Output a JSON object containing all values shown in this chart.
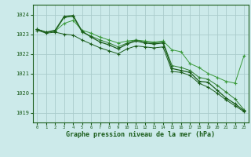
{
  "bg_color": "#cceaea",
  "grid_color": "#aacccc",
  "line_color_dark": "#1a5c1a",
  "line_color_mid": "#2e7d2e",
  "line_color_light": "#3a9a3a",
  "title": "Graphe pression niveau de la mer (hPa)",
  "title_color": "#1a5c1a",
  "xlim": [
    -0.5,
    23.5
  ],
  "ylim": [
    1018.5,
    1024.5
  ],
  "yticks": [
    1019,
    1020,
    1021,
    1022,
    1023,
    1024
  ],
  "xticks": [
    0,
    1,
    2,
    3,
    4,
    5,
    6,
    7,
    8,
    9,
    10,
    11,
    12,
    13,
    14,
    15,
    16,
    17,
    18,
    19,
    20,
    21,
    22,
    23
  ],
  "series1": [
    1023.25,
    1023.1,
    1023.15,
    1023.55,
    1023.7,
    1023.2,
    1023.05,
    1022.85,
    1022.7,
    1022.55,
    1022.65,
    1022.7,
    1022.65,
    1022.6,
    1022.65,
    1022.2,
    1022.1,
    1021.5,
    1021.3,
    1021.0,
    1020.8,
    1020.6,
    1020.5,
    1021.9
  ],
  "series2": [
    1023.25,
    1023.1,
    1023.15,
    1023.85,
    1023.9,
    1023.1,
    1022.9,
    1022.7,
    1022.55,
    1022.35,
    1022.55,
    1022.7,
    1022.6,
    1022.55,
    1022.6,
    1021.4,
    1021.3,
    1021.15,
    1020.8,
    1020.7,
    1020.4,
    1020.05,
    1019.7,
    1019.15
  ],
  "series3": [
    1023.25,
    1023.1,
    1023.2,
    1023.9,
    1023.95,
    1023.15,
    1022.85,
    1022.6,
    1022.45,
    1022.25,
    1022.5,
    1022.65,
    1022.55,
    1022.5,
    1022.55,
    1021.25,
    1021.15,
    1021.05,
    1020.6,
    1020.55,
    1020.15,
    1019.75,
    1019.45,
    1019.1
  ],
  "series4": [
    1023.2,
    1023.05,
    1023.1,
    1023.0,
    1022.95,
    1022.7,
    1022.5,
    1022.3,
    1022.15,
    1022.0,
    1022.25,
    1022.4,
    1022.35,
    1022.3,
    1022.35,
    1021.1,
    1021.05,
    1020.9,
    1020.5,
    1020.3,
    1020.0,
    1019.65,
    1019.35,
    1019.05
  ]
}
